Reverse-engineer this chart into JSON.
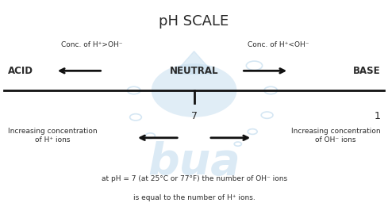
{
  "title": "pH SCALE",
  "title_fontsize": 13,
  "bg_color": "#ffffff",
  "watermark_color": "#c8dff0",
  "text_color": "#2a2a2a",
  "line_color": "#111111",
  "conc_left": "Conc. of H⁺>OH⁻",
  "conc_right": "Conc. of H⁺<OH⁻",
  "neutral_label": "NEUTRAL",
  "neutral_tick_label": "7",
  "acid_label": "ACID",
  "base_label": "BASE",
  "number_right": "1",
  "footnote_line1": "at pH = 7 (at 25°C or 77°F) the number of OH⁻ ions",
  "footnote_line2": "is equal to the number of H⁺ ions.",
  "increasing_h": "Increasing concentration\nof H⁺ ions",
  "increasing_oh": "Increasing concentration\nof OH⁻ ions"
}
